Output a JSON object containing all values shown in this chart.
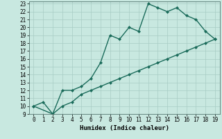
{
  "xlabel": "Humidex (Indice chaleur)",
  "xlim": [
    -0.5,
    19.5
  ],
  "ylim": [
    9,
    23.3
  ],
  "xticks": [
    0,
    1,
    2,
    3,
    4,
    5,
    6,
    7,
    8,
    9,
    10,
    11,
    12,
    13,
    14,
    15,
    16,
    17,
    18,
    19
  ],
  "yticks": [
    9,
    10,
    11,
    12,
    13,
    14,
    15,
    16,
    17,
    18,
    19,
    20,
    21,
    22,
    23
  ],
  "bg_color": "#c8e8e0",
  "line_color": "#1a6b5a",
  "upper_x": [
    0,
    1,
    2,
    3,
    4,
    5,
    6,
    7,
    8,
    9,
    10,
    11,
    12,
    13,
    14,
    15,
    16,
    17,
    18,
    19
  ],
  "upper_y": [
    10.0,
    10.5,
    9.0,
    12.0,
    12.0,
    12.5,
    13.5,
    15.5,
    19.0,
    18.5,
    20.0,
    19.5,
    23.0,
    22.5,
    22.0,
    22.5,
    21.5,
    21.0,
    19.5,
    18.5
  ],
  "lower_x": [
    0,
    2,
    3,
    4,
    5,
    6,
    7,
    8,
    9,
    10,
    11,
    12,
    13,
    14,
    15,
    16,
    17,
    18,
    19
  ],
  "lower_y": [
    10.0,
    9.0,
    10.0,
    10.5,
    11.5,
    12.0,
    12.5,
    13.0,
    13.5,
    14.0,
    14.5,
    15.0,
    15.5,
    16.0,
    16.5,
    17.0,
    17.5,
    18.0,
    18.5
  ],
  "marker": "D",
  "markersize": 2.5,
  "linewidth": 1.0,
  "grid_color": "#a8ccc4",
  "label_fontsize": 6.5,
  "tick_fontsize": 5.5
}
